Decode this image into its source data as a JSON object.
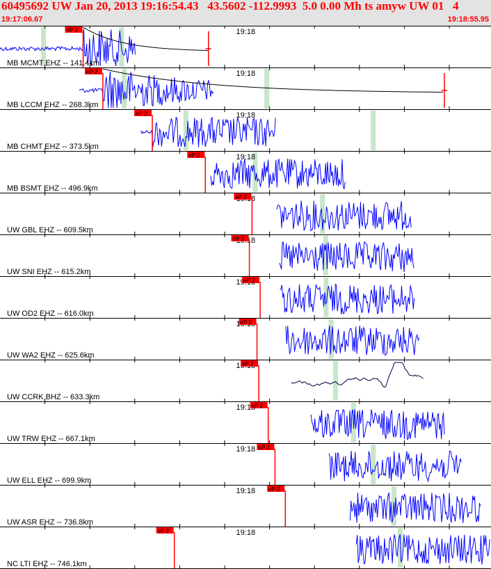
{
  "header": {
    "title": "60495692 UW Jan 20, 2013 19:16:54.43   43.5602 -112.9993  5.0 0.00 Mh ts amyw UW 01   4",
    "start_time": "19:17:06.67",
    "end_time": "19:18:55.95"
  },
  "colors": {
    "header_bg": "#e3e3e3",
    "header_text": "#ff0000",
    "waveform": "#0000ff",
    "long_period_waveform": "#000040",
    "pick": "#ff0000",
    "window_marker": "#c8e6c9",
    "grid": "#000000"
  },
  "chart_data": {
    "type": "line",
    "x_range_seconds": [
      0,
      109.28
    ],
    "minute_label": "19:18",
    "minute_label_offset_s": 53.33,
    "pick_label": "eP 2",
    "traces": [
      {
        "label": "MB MCMT EHZ -- 141.4km",
        "pick_s": 18.5,
        "signal_start_s": 0.0,
        "signal_end_s": 30.3,
        "markers_s": [
          9.6,
          27.0
        ],
        "lp_curve": true,
        "end_mark_s": 46.4
      },
      {
        "label": "MB LCCM EHZ -- 268.3km",
        "pick_s": 22.9,
        "signal_start_s": 17.6,
        "signal_end_s": 47.7,
        "markers_s": [
          27.6,
          59.3
        ],
        "lp_curve": true,
        "end_mark_s": 98.9
      },
      {
        "label": "MB CHMT EHZ -- 373.5km",
        "pick_s": 33.9,
        "signal_start_s": 31.4,
        "signal_end_s": 61.4,
        "markers_s": [
          41.3,
          83.0
        ]
      },
      {
        "label": "MB BSMT EHZ -- 496.9km",
        "pick_s": 45.7,
        "signal_start_s": 46.9,
        "signal_end_s": 77.0,
        "markers_s": [
          56.7
        ]
      },
      {
        "label": "UW GBL EHZ -- 609.5km",
        "pick_s": 56.1,
        "signal_start_s": 61.6,
        "signal_end_s": 91.7,
        "markers_s": [
          71.7
        ]
      },
      {
        "label": "UW SNI EHZ -- 615.2km",
        "pick_s": 55.5,
        "signal_start_s": 62.2,
        "signal_end_s": 92.3,
        "markers_s": [
          72.4
        ]
      },
      {
        "label": "UW OD2 EHZ -- 616.0km",
        "pick_s": 57.9,
        "signal_start_s": 62.3,
        "signal_end_s": 92.4,
        "markers_s": [
          72.5
        ]
      },
      {
        "label": "UW WA2 EHZ -- 625.6km",
        "pick_s": 57.2,
        "signal_start_s": 63.6,
        "signal_end_s": 93.5,
        "markers_s": [
          73.6
        ]
      },
      {
        "label": "UW CCRK BHZ -- 633.3km",
        "pick_s": 57.6,
        "signal_start_s": 64.8,
        "signal_end_s": 94.4,
        "markers_s": [
          74.6
        ],
        "long_period": true
      },
      {
        "label": "UW TRW EHZ -- 667.1km",
        "pick_s": 59.7,
        "signal_start_s": 69.2,
        "signal_end_s": 99.0,
        "markers_s": [
          78.6
        ]
      },
      {
        "label": "UW ELL EHZ -- 699.9km",
        "pick_s": 61.2,
        "signal_start_s": 73.2,
        "signal_end_s": 102.8,
        "markers_s": [
          83.0
        ]
      },
      {
        "label": "UW ASR EHZ -- 736.8km",
        "pick_s": 63.5,
        "signal_start_s": 77.9,
        "signal_end_s": 107.1,
        "markers_s": [
          87.6
        ]
      },
      {
        "label": "NC LTI EHZ -- 746.1km",
        "pick_s": 38.8,
        "signal_start_s": 79.3,
        "signal_end_s": 109.2,
        "markers_s": [
          89.0
        ]
      }
    ]
  }
}
